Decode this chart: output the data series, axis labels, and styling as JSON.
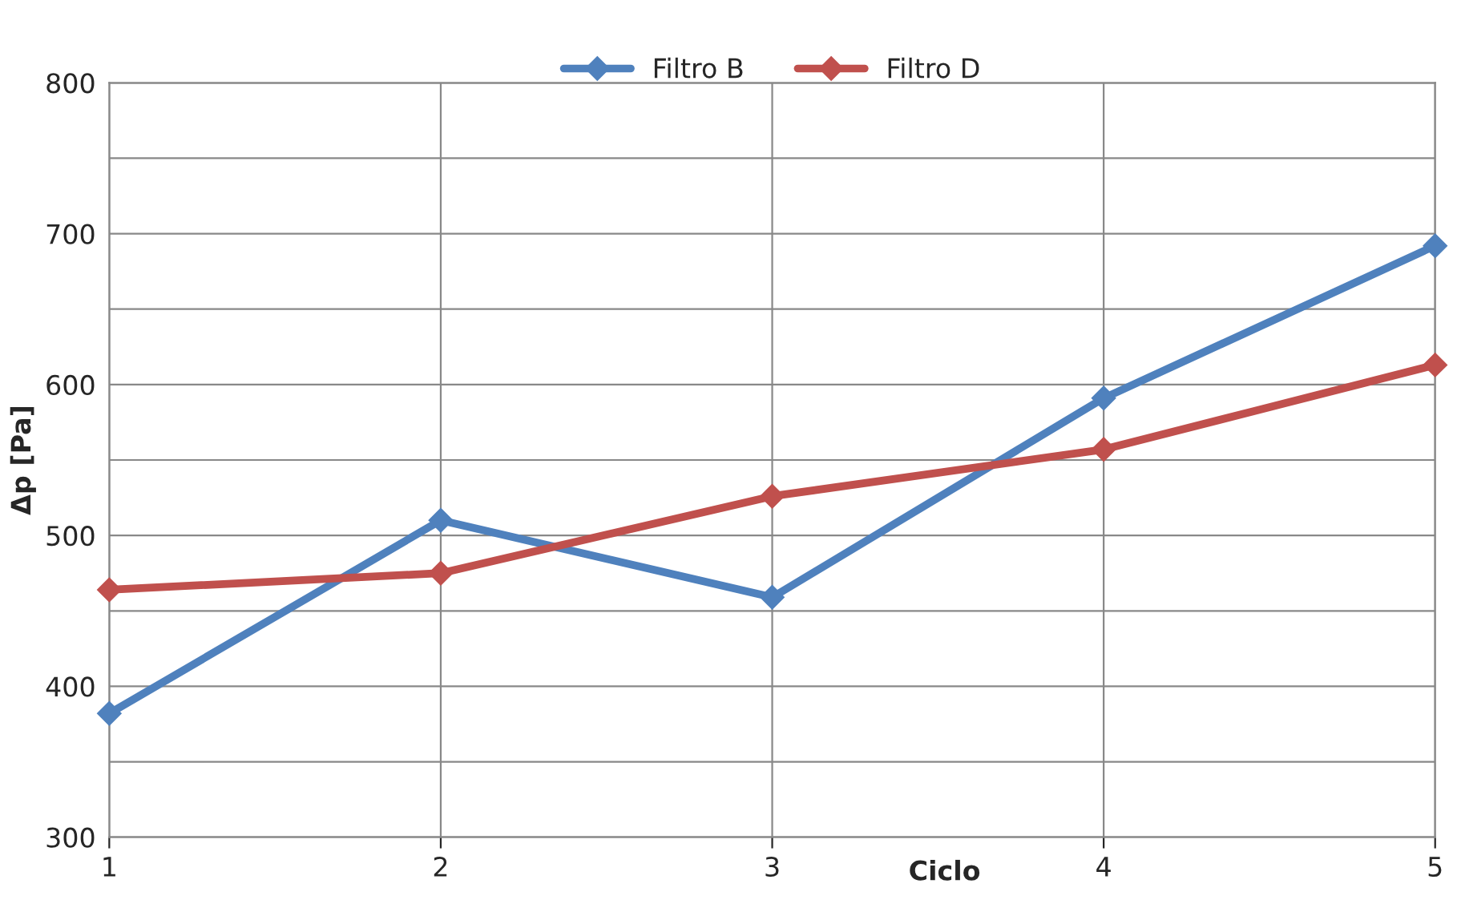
{
  "chart_data": {
    "type": "line",
    "xlabel": "Ciclo",
    "ylabel": "Δp [Pa]",
    "x": [
      1,
      2,
      3,
      4,
      5
    ],
    "series": [
      {
        "name": "Filtro B",
        "color": "#4f81bd",
        "values": [
          382,
          510,
          459,
          591,
          692
        ]
      },
      {
        "name": "Filtro D",
        "color": "#c0504d",
        "values": [
          464,
          475,
          526,
          557,
          613
        ]
      }
    ],
    "xlim": [
      1,
      5
    ],
    "xticks": [
      1,
      2,
      3,
      4,
      5
    ],
    "ylim": [
      300,
      800
    ],
    "yticks": [
      300,
      {
        "value": 350,
        "label": null
      },
      400,
      {
        "value": 450,
        "label": null
      },
      500,
      {
        "value": 550,
        "label": null
      },
      600,
      {
        "value": 650,
        "label": null
      },
      700,
      {
        "value": 750,
        "label": null
      },
      800
    ],
    "grid": true,
    "legend": "top",
    "marker": "diamond",
    "line_style": "solid"
  }
}
